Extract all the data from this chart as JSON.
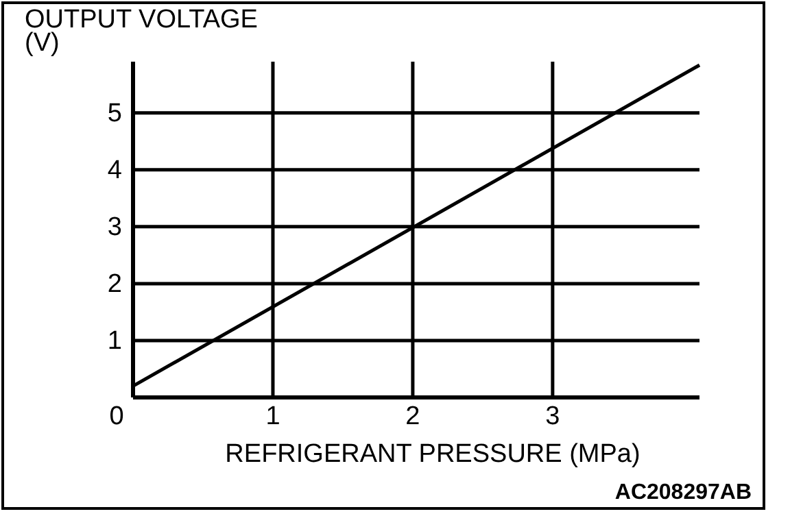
{
  "chart_data": {
    "type": "line",
    "ylabel": "OUTPUT VOLTAGE (V)",
    "xlabel": "REFRIGERANT PRESSURE (MPa)",
    "x": [
      0,
      4.05
    ],
    "series": [
      {
        "color": "#000000",
        "values": [
          0.2,
          5.84
        ]
      }
    ],
    "xlim": [
      0,
      4.05
    ],
    "ylim": [
      0,
      5.9
    ],
    "xticks": [
      0,
      1,
      2,
      3
    ],
    "yticks": [
      {
        "value": 0,
        "label": null
      },
      1,
      2,
      3,
      4,
      5
    ],
    "grid": true,
    "marker": "none",
    "line_style": "solid",
    "annotations": [
      "AC208297AB"
    ]
  }
}
